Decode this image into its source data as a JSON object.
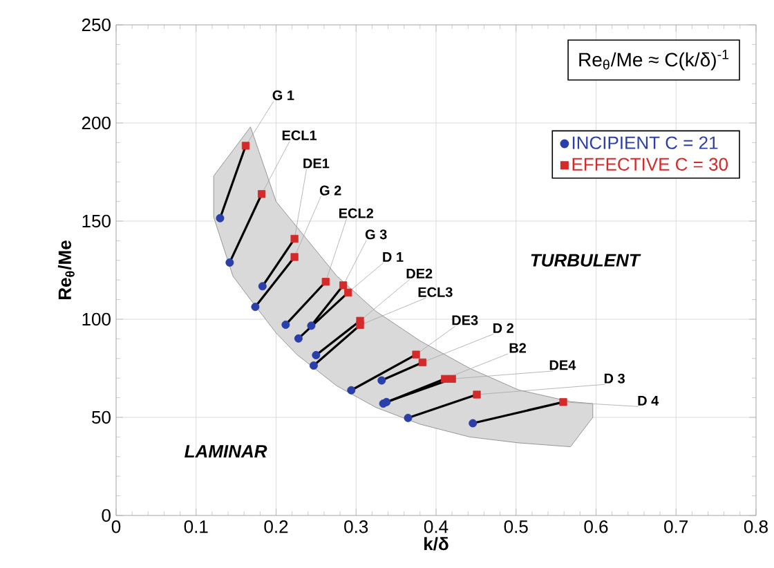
{
  "chart_data": {
    "type": "scatter",
    "xlabel": "k/δ",
    "ylabel": "Re$_{θ}$/Me",
    "xlim": [
      0,
      0.8
    ],
    "ylim": [
      0,
      250
    ],
    "xticks": [
      0,
      0.1,
      0.2,
      0.3,
      0.4,
      0.5,
      0.6,
      0.7,
      0.8
    ],
    "yticks": [
      0,
      50,
      100,
      150,
      200,
      250
    ],
    "grid": true,
    "legend": "top right",
    "series": [
      {
        "name": "INCIPIENT  C = 21",
        "color": "#2a3fa8",
        "marker": "circle",
        "x": [
          0.13,
          0.142,
          0.183,
          0.174,
          0.212,
          0.244,
          0.228,
          0.25,
          0.247,
          0.294,
          0.332,
          0.334,
          0.338,
          0.365,
          0.446
        ],
        "values": [
          151.5,
          128.9,
          116.8,
          106.3,
          97.2,
          96.7,
          90.2,
          81.7,
          76.4,
          63.8,
          68.8,
          57.0,
          57.8,
          49.7,
          47.0
        ]
      },
      {
        "name": "EFFECTIVE  C = 30",
        "color": "#d42a2a",
        "marker": "square",
        "x": [
          0.162,
          0.182,
          0.223,
          0.223,
          0.262,
          0.284,
          0.29,
          0.305,
          0.305,
          0.375,
          0.383,
          0.411,
          0.42,
          0.451,
          0.559
        ],
        "values": [
          188.4,
          163.8,
          141.0,
          131.7,
          119.1,
          117.3,
          113.6,
          99.2,
          97.0,
          82.0,
          78.0,
          69.6,
          69.6,
          61.6,
          57.8
        ]
      },
      {
        "type": "area",
        "color": "#d9d9d9",
        "x": [
          0.122,
          0.146,
          0.168,
          0.2,
          0.226,
          0.276,
          0.325,
          0.38,
          0.442,
          0.503,
          0.568,
          0.596,
          0.596,
          0.568,
          0.503,
          0.442,
          0.38,
          0.325,
          0.276,
          0.226,
          0.2,
          0.168,
          0.146,
          0.122
        ],
        "values": [
          173,
          186,
          198,
          160,
          147,
          122,
          104,
          89,
          75,
          64,
          58,
          57,
          50,
          35,
          37,
          40,
          46.5,
          55,
          66,
          82,
          93,
          110,
          122,
          152
        ]
      },
      {
        "type": "line",
        "color": "#000000",
        "x": [
          0.13,
          0.162
        ],
        "values": [
          151.5,
          188.4
        ]
      },
      {
        "type": "line",
        "color": "#000000",
        "x": [
          0.142,
          0.182
        ],
        "values": [
          128.9,
          163.8
        ]
      },
      {
        "type": "line",
        "color": "#000000",
        "x": [
          0.183,
          0.223
        ],
        "values": [
          116.8,
          141.0
        ]
      },
      {
        "type": "line",
        "color": "#000000",
        "x": [
          0.174,
          0.223
        ],
        "values": [
          106.3,
          131.7
        ]
      },
      {
        "type": "line",
        "color": "#000000",
        "x": [
          0.212,
          0.262
        ],
        "values": [
          97.2,
          119.1
        ]
      },
      {
        "type": "line",
        "color": "#000000",
        "x": [
          0.244,
          0.284
        ],
        "values": [
          96.7,
          117.3
        ]
      },
      {
        "type": "line",
        "color": "#000000",
        "x": [
          0.228,
          0.29
        ],
        "values": [
          90.2,
          113.6
        ]
      },
      {
        "type": "line",
        "color": "#000000",
        "x": [
          0.25,
          0.305
        ],
        "values": [
          81.7,
          99.2
        ]
      },
      {
        "type": "line",
        "color": "#000000",
        "x": [
          0.247,
          0.305
        ],
        "values": [
          76.4,
          97.0
        ]
      },
      {
        "type": "line",
        "color": "#000000",
        "x": [
          0.294,
          0.375
        ],
        "values": [
          63.8,
          82.0
        ]
      },
      {
        "type": "line",
        "color": "#000000",
        "x": [
          0.332,
          0.383
        ],
        "values": [
          68.8,
          78.0
        ]
      },
      {
        "type": "line",
        "color": "#000000",
        "x": [
          0.334,
          0.411
        ],
        "values": [
          57.0,
          69.6
        ]
      },
      {
        "type": "line",
        "color": "#000000",
        "x": [
          0.338,
          0.42
        ],
        "values": [
          57.8,
          69.6
        ]
      },
      {
        "type": "line",
        "color": "#000000",
        "x": [
          0.365,
          0.451
        ],
        "values": [
          49.7,
          61.6
        ]
      },
      {
        "type": "line",
        "color": "#000000",
        "x": [
          0.446,
          0.559
        ],
        "values": [
          47.0,
          57.8
        ]
      }
    ],
    "annotations": [
      "Re$_{θ}$/Me ≈ C(k/δ)$^{-1}$",
      "TURBULENT",
      "LAMINAR",
      {
        "text": "G 1",
        "x": 0.162,
        "y": 188.4
      },
      {
        "text": "ECL1",
        "x": 0.182,
        "y": 163.8
      },
      {
        "text": "DE1",
        "x": 0.223,
        "y": 141.0
      },
      {
        "text": "G 2",
        "x": 0.223,
        "y": 131.7
      },
      {
        "text": "ECL2",
        "x": 0.262,
        "y": 119.1
      },
      {
        "text": "G 3",
        "x": 0.284,
        "y": 117.3
      },
      {
        "text": "D 1",
        "x": 0.29,
        "y": 113.6
      },
      {
        "text": "DE2",
        "x": 0.305,
        "y": 99.2
      },
      {
        "text": "ECL3",
        "x": 0.305,
        "y": 97.0
      },
      {
        "text": "DE3",
        "x": 0.375,
        "y": 82.0
      },
      {
        "text": "D 2",
        "x": 0.383,
        "y": 78.0
      },
      {
        "text": "B2",
        "x": 0.411,
        "y": 69.6
      },
      {
        "text": "DE4",
        "x": 0.42,
        "y": 69.6
      },
      {
        "text": "D 3",
        "x": 0.451,
        "y": 61.6
      },
      {
        "text": "D 4",
        "x": 0.559,
        "y": 57.8
      }
    ]
  }
}
